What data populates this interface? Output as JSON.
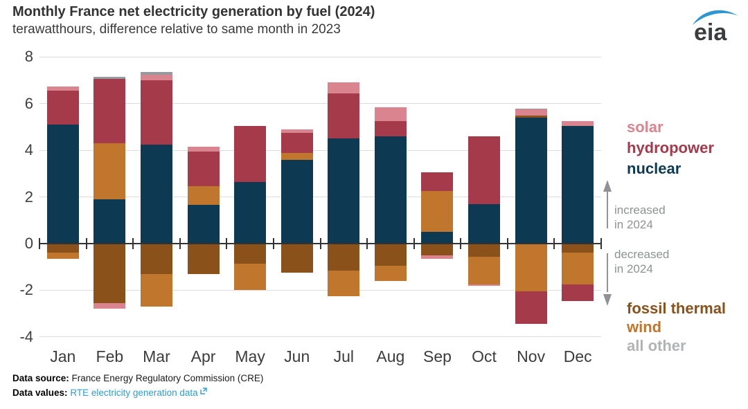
{
  "chart_data": {
    "type": "bar",
    "stacked": true,
    "title": "Monthly France net electricity generation by fuel (2024)",
    "subtitle": "terawatthours, difference relative to same month in 2023",
    "unit": "terawatthours",
    "categories": [
      "Jan",
      "Feb",
      "Mar",
      "Apr",
      "May",
      "Jun",
      "Jul",
      "Aug",
      "Sep",
      "Oct",
      "Nov",
      "Dec"
    ],
    "yticks": [
      8,
      6,
      4,
      2,
      0,
      -2,
      -4
    ],
    "ylim": [
      -4,
      8
    ],
    "grid": "horizontal",
    "series": [
      {
        "name": "nuclear",
        "color": "#0d3a52",
        "values": [
          5.1,
          1.9,
          4.25,
          1.65,
          2.65,
          3.6,
          4.5,
          4.6,
          0.5,
          1.7,
          5.4,
          5.05
        ]
      },
      {
        "name": "fossil thermal",
        "color": "#8a511b",
        "values": [
          -0.4,
          -2.55,
          -1.3,
          -1.3,
          -0.85,
          -1.25,
          -1.15,
          -0.95,
          -0.5,
          -0.55,
          0.1,
          -0.4
        ]
      },
      {
        "name": "wind",
        "color": "#c1762d",
        "values": [
          -0.25,
          2.4,
          -1.4,
          0.8,
          -1.15,
          0.3,
          -1.1,
          -0.65,
          1.75,
          -1.2,
          -2.05,
          -1.35
        ]
      },
      {
        "name": "hydropower",
        "color": "#a53b4a",
        "values": [
          1.45,
          2.75,
          2.75,
          1.5,
          2.4,
          0.85,
          1.95,
          0.65,
          0.8,
          2.9,
          -1.4,
          -0.7
        ]
      },
      {
        "name": "solar",
        "color": "#d9848f",
        "values": [
          0.2,
          -0.25,
          0.25,
          0.2,
          0,
          0.15,
          0.45,
          0.6,
          -0.15,
          -0.05,
          0.25,
          0.2
        ]
      },
      {
        "name": "all other",
        "color": "#97999c",
        "values": [
          0,
          0.1,
          0.1,
          0,
          0,
          0,
          0,
          0,
          0,
          0,
          0.05,
          0
        ]
      }
    ],
    "legend_position": "right"
  },
  "legend_top": [
    {
      "label": "solar",
      "color": "#d9848f"
    },
    {
      "label": "hydropower",
      "color": "#a53b4a"
    },
    {
      "label": "nuclear",
      "color": "#0d3a52"
    }
  ],
  "legend_bottom": [
    {
      "label": "fossil thermal",
      "color": "#8a511b"
    },
    {
      "label": "wind",
      "color": "#c1762d"
    },
    {
      "label": "all other",
      "color": "#b1b3b5"
    }
  ],
  "annotations": {
    "increased": {
      "line1": "increased",
      "line2": "in 2024"
    },
    "decreased": {
      "line1": "decreased",
      "line2": "in 2024"
    },
    "text_color": "#8e9193",
    "arrow_color": "#909396"
  },
  "logo": {
    "text": "eia",
    "swoosh_color": "#2e96d1",
    "text_color": "#3a3c3e"
  },
  "footer": {
    "source_label": "Data source:",
    "source_value": " France Energy Regulatory Commission (CRE)",
    "values_label": "Data values:",
    "link_label": "RTE electricity generation data",
    "link_color": "#2a9fd8"
  },
  "style_colors": {
    "gridline": "#dcdcdc",
    "zero_axis": "#333333",
    "tick_label": "#3f3f3f"
  }
}
